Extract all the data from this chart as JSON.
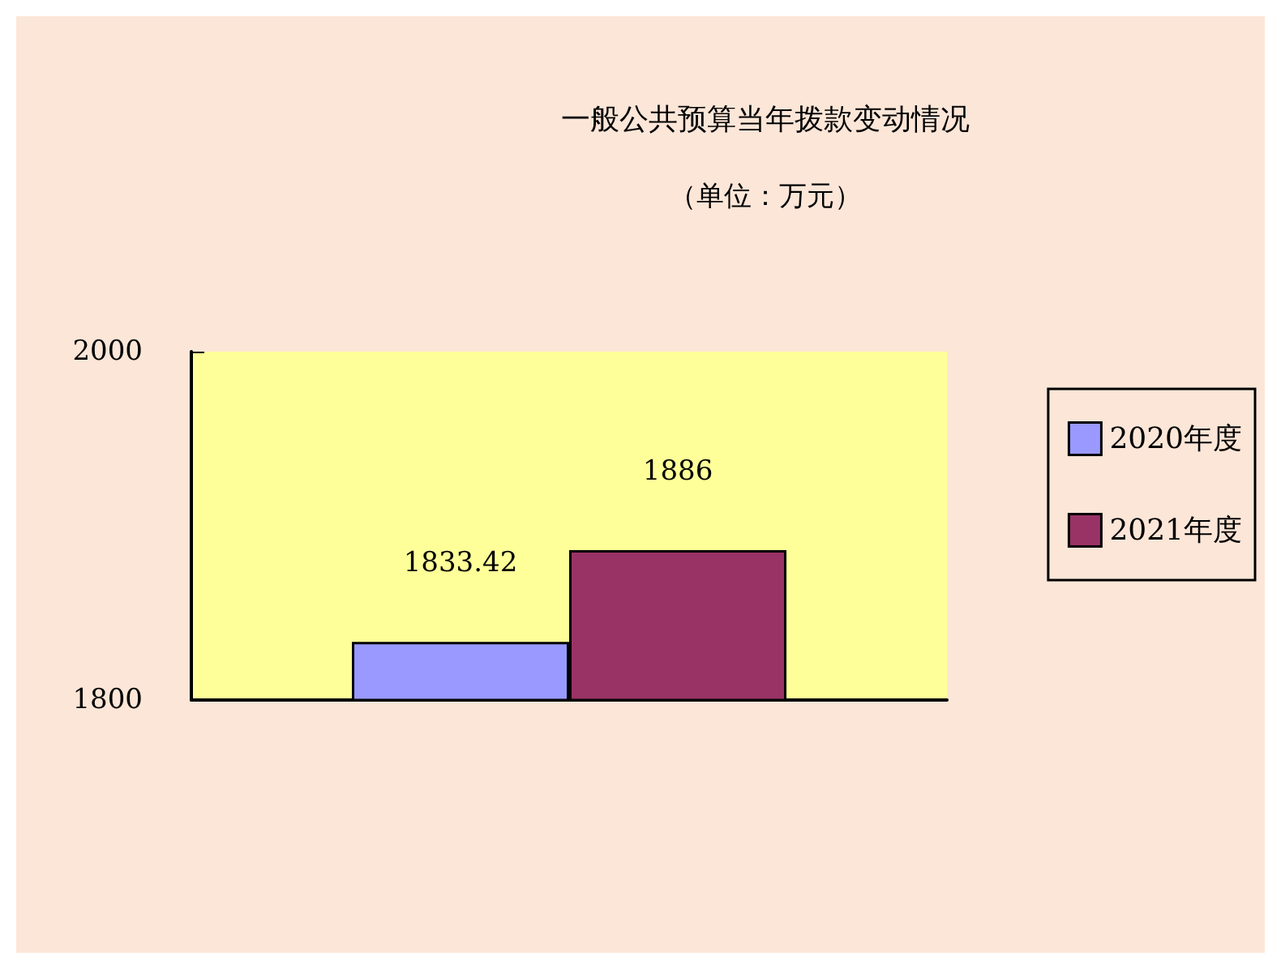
{
  "chart_data": {
    "type": "bar",
    "title": "一般公共预算当年拨款变动情况",
    "subtitle": "（单位：万元）",
    "categories": [
      null
    ],
    "series": [
      {
        "name": "2020年度",
        "color": "#9999ff",
        "values": [
          1833.42
        ]
      },
      {
        "name": "2021年度",
        "color": "#993366",
        "values": [
          1886
        ]
      }
    ],
    "ylim": [
      1800,
      2000
    ],
    "yticks": [
      1800,
      2000
    ],
    "grid": false,
    "legend": "right",
    "data_labels": true
  }
}
